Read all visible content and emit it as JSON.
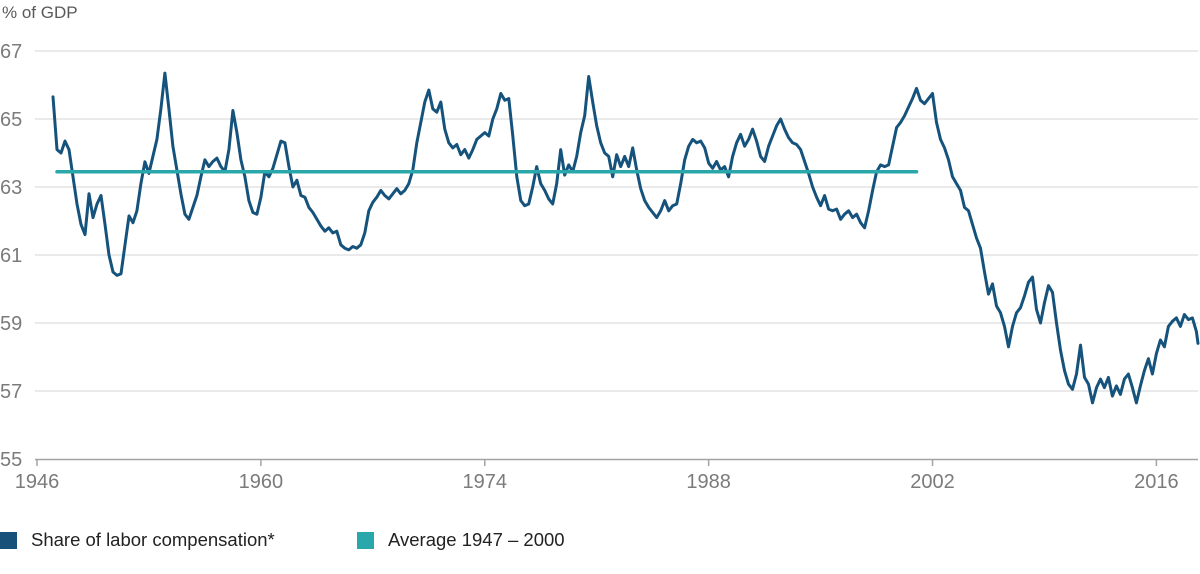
{
  "header": {
    "axis_unit_label": "% of GDP"
  },
  "legend": {
    "items": [
      {
        "label": "Share of labor compensation*",
        "color": "#175079"
      },
      {
        "label": "Average 1947 – 2000",
        "color": "#29a7aa"
      }
    ]
  },
  "chart_data": {
    "type": "line",
    "title": "% of GDP",
    "xlabel": "",
    "ylabel": "% of GDP",
    "grid": "horizontal",
    "legend_position": "bottom",
    "xlim": [
      1946,
      2018.6
    ],
    "ylim": [
      55,
      67
    ],
    "x_ticks": [
      1946,
      1960,
      1974,
      1988,
      2002,
      2016
    ],
    "y_ticks": [
      67,
      65,
      63,
      61,
      59,
      57,
      55
    ],
    "colors": {
      "gridline": "#d6d6d6",
      "axis": "#a3a3a3",
      "tick_text": "#7b7b7b",
      "main_line": "#15537c",
      "average_line": "#29a7aa"
    },
    "series": [
      {
        "name": "Share of labor compensation*",
        "type": "line",
        "color": "#15537c",
        "start_year": 1947,
        "period_years": 0.25,
        "values": [
          65.65,
          64.1,
          64.0,
          64.35,
          64.1,
          63.3,
          62.5,
          61.9,
          61.6,
          62.8,
          62.1,
          62.5,
          62.75,
          61.9,
          61.0,
          60.5,
          60.4,
          60.45,
          61.3,
          62.15,
          61.95,
          62.3,
          63.1,
          63.74,
          63.4,
          63.9,
          64.4,
          65.3,
          66.35,
          65.3,
          64.2,
          63.5,
          62.8,
          62.2,
          62.05,
          62.4,
          62.75,
          63.3,
          63.8,
          63.6,
          63.75,
          63.85,
          63.6,
          63.45,
          64.1,
          65.25,
          64.6,
          63.8,
          63.3,
          62.6,
          62.25,
          62.2,
          62.7,
          63.45,
          63.3,
          63.55,
          63.95,
          64.35,
          64.3,
          63.6,
          63.0,
          63.2,
          62.75,
          62.7,
          62.4,
          62.25,
          62.05,
          61.85,
          61.7,
          61.8,
          61.65,
          61.7,
          61.3,
          61.2,
          61.15,
          61.25,
          61.2,
          61.3,
          61.65,
          62.3,
          62.55,
          62.7,
          62.9,
          62.75,
          62.65,
          62.8,
          62.95,
          62.8,
          62.9,
          63.1,
          63.5,
          64.3,
          64.9,
          65.5,
          65.85,
          65.3,
          65.2,
          65.5,
          64.7,
          64.3,
          64.15,
          64.25,
          63.95,
          64.1,
          63.85,
          64.1,
          64.4,
          64.5,
          64.6,
          64.5,
          65.0,
          65.3,
          65.75,
          65.55,
          65.6,
          64.5,
          63.3,
          62.6,
          62.45,
          62.5,
          63.0,
          63.6,
          63.1,
          62.9,
          62.65,
          62.5,
          63.1,
          64.1,
          63.35,
          63.65,
          63.45,
          63.9,
          64.6,
          65.1,
          66.25,
          65.5,
          64.8,
          64.3,
          64.0,
          63.9,
          63.3,
          63.95,
          63.6,
          63.9,
          63.6,
          64.15,
          63.5,
          62.95,
          62.6,
          62.4,
          62.25,
          62.1,
          62.3,
          62.6,
          62.3,
          62.45,
          62.5,
          63.1,
          63.8,
          64.2,
          64.4,
          64.3,
          64.35,
          64.15,
          63.7,
          63.55,
          63.75,
          63.5,
          63.6,
          63.3,
          63.9,
          64.3,
          64.55,
          64.2,
          64.4,
          64.7,
          64.35,
          63.9,
          63.75,
          64.2,
          64.5,
          64.8,
          65.0,
          64.7,
          64.45,
          64.3,
          64.25,
          64.1,
          63.75,
          63.4,
          63.0,
          62.7,
          62.45,
          62.75,
          62.35,
          62.3,
          62.35,
          62.05,
          62.2,
          62.3,
          62.1,
          62.2,
          61.95,
          61.8,
          62.3,
          62.9,
          63.45,
          63.65,
          63.6,
          63.65,
          64.2,
          64.75,
          64.9,
          65.1,
          65.35,
          65.6,
          65.9,
          65.55,
          65.45,
          65.6,
          65.75,
          64.9,
          64.4,
          64.15,
          63.8,
          63.3,
          63.1,
          62.9,
          62.4,
          62.3,
          61.9,
          61.5,
          61.2,
          60.5,
          59.85,
          60.15,
          59.5,
          59.3,
          58.9,
          58.3,
          58.9,
          59.3,
          59.45,
          59.8,
          60.2,
          60.35,
          59.4,
          59.0,
          59.6,
          60.1,
          59.9,
          59.0,
          58.2,
          57.6,
          57.2,
          57.05,
          57.5,
          58.35,
          57.4,
          57.2,
          56.65,
          57.1,
          57.35,
          57.1,
          57.4,
          56.85,
          57.15,
          56.9,
          57.35,
          57.5,
          57.1,
          56.65,
          57.15,
          57.6,
          57.95,
          57.5,
          58.1,
          58.5,
          58.3,
          58.9,
          59.05,
          59.15,
          58.9,
          59.25,
          59.1,
          59.15,
          58.75,
          58.4
        ]
      },
      {
        "name": "Average 1947 – 2000",
        "type": "hline",
        "color": "#29a7aa",
        "value": 63.45,
        "span": [
          1947.25,
          2001
        ]
      }
    ]
  }
}
